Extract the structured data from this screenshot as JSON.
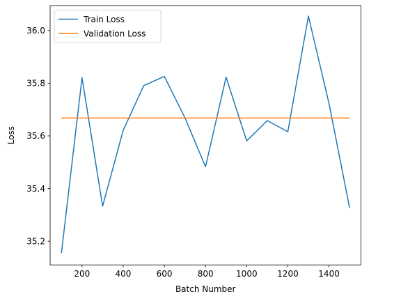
{
  "chart_data": {
    "type": "line",
    "title": "",
    "xlabel": "Batch Number",
    "ylabel": "Loss",
    "xlim": [
      45,
      1555
    ],
    "ylim": [
      35.11,
      36.095
    ],
    "xticks": [
      200,
      400,
      600,
      800,
      1000,
      1200,
      1400
    ],
    "xtick_labels": [
      "200",
      "400",
      "600",
      "800",
      "1000",
      "1200",
      "1400"
    ],
    "yticks": [
      35.2,
      35.4,
      35.6,
      35.8,
      36.0
    ],
    "ytick_labels": [
      "35.2",
      "35.4",
      "35.6",
      "35.8",
      "36.0"
    ],
    "grid": false,
    "legend_position": "top-left",
    "x": [
      100,
      200,
      300,
      400,
      500,
      600,
      700,
      800,
      900,
      1000,
      1100,
      1200,
      1300,
      1400,
      1500
    ],
    "series": [
      {
        "name": "Train Loss",
        "color": "#1f77b4",
        "values": [
          35.155,
          35.821,
          35.333,
          35.621,
          35.791,
          35.826,
          35.669,
          35.483,
          35.823,
          35.581,
          35.658,
          35.616,
          36.055,
          35.723,
          35.327
        ]
      },
      {
        "name": "Validation Loss",
        "color": "#ff7f0e",
        "values": [
          35.668,
          35.668,
          35.668,
          35.668,
          35.668,
          35.668,
          35.668,
          35.668,
          35.668,
          35.668,
          35.668,
          35.668,
          35.668,
          35.668,
          35.668
        ]
      }
    ]
  }
}
